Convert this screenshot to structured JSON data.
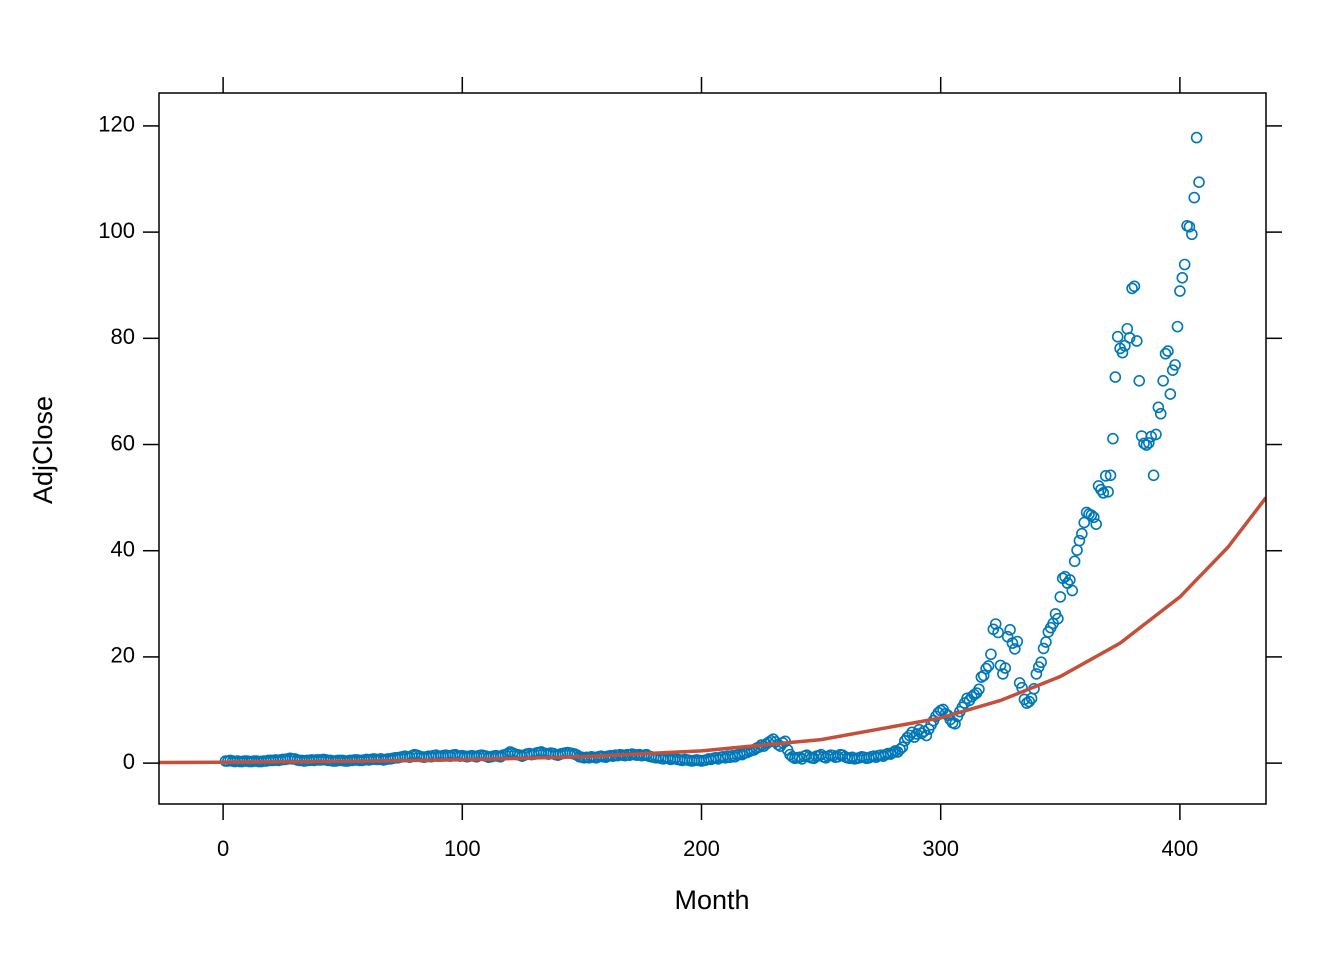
{
  "chart_data": {
    "type": "scatter",
    "x_label": "Month",
    "y_label": "AdjClose",
    "xlim": [
      -26.8,
      436
    ],
    "ylim": [
      -7.7,
      126.2
    ],
    "xticks": [
      0,
      100,
      200,
      300,
      400
    ],
    "yticks": [
      0,
      20,
      40,
      60,
      80,
      100,
      120
    ],
    "series": [
      {
        "type": "scatter",
        "color": "#0077b6",
        "x": [
          1,
          2,
          3,
          4,
          5,
          6,
          7,
          8,
          9,
          10,
          11,
          12,
          13,
          14,
          15,
          16,
          17,
          18,
          19,
          20,
          21,
          22,
          23,
          24,
          25,
          26,
          27,
          28,
          29,
          30,
          31,
          32,
          33,
          34,
          35,
          36,
          37,
          38,
          39,
          40,
          41,
          42,
          43,
          44,
          45,
          46,
          47,
          48,
          49,
          50,
          51,
          52,
          53,
          54,
          55,
          56,
          57,
          58,
          59,
          60,
          61,
          62,
          63,
          64,
          65,
          66,
          67,
          68,
          69,
          70,
          71,
          72,
          73,
          74,
          75,
          76,
          77,
          78,
          79,
          80,
          81,
          82,
          83,
          84,
          85,
          86,
          87,
          88,
          89,
          90,
          91,
          92,
          93,
          94,
          95,
          96,
          97,
          98,
          99,
          100,
          101,
          102,
          103,
          104,
          105,
          106,
          107,
          108,
          109,
          110,
          111,
          112,
          113,
          114,
          115,
          116,
          117,
          118,
          119,
          120,
          121,
          122,
          123,
          124,
          125,
          126,
          127,
          128,
          129,
          130,
          131,
          132,
          133,
          134,
          135,
          136,
          137,
          138,
          139,
          140,
          141,
          142,
          143,
          144,
          145,
          146,
          147,
          148,
          149,
          150,
          151,
          152,
          153,
          154,
          155,
          156,
          157,
          158,
          159,
          160,
          161,
          162,
          163,
          164,
          165,
          166,
          167,
          168,
          169,
          170,
          171,
          172,
          173,
          174,
          175,
          176,
          177,
          178,
          179,
          180,
          181,
          182,
          183,
          184,
          185,
          186,
          187,
          188,
          189,
          190,
          191,
          192,
          193,
          194,
          195,
          196,
          197,
          198,
          199,
          200,
          201,
          202,
          203,
          204,
          205,
          206,
          207,
          208,
          209,
          210,
          211,
          212,
          213,
          214,
          215,
          216,
          217,
          218,
          219,
          220,
          221,
          222,
          223,
          224,
          225,
          226,
          227,
          228,
          229,
          230,
          231,
          232,
          233,
          234,
          235,
          236,
          237,
          238,
          239,
          240,
          241,
          242,
          243,
          244,
          245,
          246,
          247,
          248,
          249,
          250,
          251,
          252,
          253,
          254,
          255,
          256,
          257,
          258,
          259,
          260,
          261,
          262,
          263,
          264,
          265,
          266,
          267,
          268,
          269,
          270,
          271,
          272,
          273,
          274,
          275,
          276,
          277,
          278,
          279,
          280,
          281,
          282,
          283,
          284,
          285,
          286,
          287,
          288,
          289,
          290,
          291,
          292,
          293,
          294,
          295,
          296,
          297,
          298,
          299,
          300,
          301,
          302,
          303,
          304,
          305,
          306,
          307,
          308,
          309,
          310,
          311,
          312,
          313,
          314,
          315,
          316,
          317,
          318,
          319,
          320,
          321,
          322,
          323,
          324,
          325,
          326,
          327,
          328,
          329,
          330,
          331,
          332,
          333,
          334,
          335,
          336,
          337,
          338,
          339,
          340,
          341,
          342,
          343,
          344,
          345,
          346,
          347,
          348,
          349,
          350,
          351,
          352,
          353,
          354,
          355,
          356,
          357,
          358,
          359,
          360,
          361,
          362,
          363,
          364,
          365,
          366,
          367,
          368,
          369,
          370,
          371,
          372,
          373,
          374,
          375,
          376,
          377,
          378,
          379,
          380,
          381,
          382,
          383,
          384,
          385,
          386,
          387,
          388,
          389,
          390,
          391,
          392,
          393,
          394,
          395,
          396,
          397,
          398,
          399,
          400,
          401,
          402,
          403,
          404,
          405,
          406,
          407,
          408
        ],
        "values": [
          0.4,
          0.4,
          0.5,
          0.4,
          0.3,
          0.4,
          0.3,
          0.3,
          0.4,
          0.4,
          0.3,
          0.3,
          0.4,
          0.4,
          0.3,
          0.3,
          0.4,
          0.4,
          0.5,
          0.5,
          0.5,
          0.6,
          0.5,
          0.6,
          0.7,
          0.7,
          0.8,
          0.9,
          0.8,
          0.8,
          0.6,
          0.5,
          0.5,
          0.4,
          0.5,
          0.5,
          0.6,
          0.5,
          0.6,
          0.6,
          0.6,
          0.7,
          0.6,
          0.5,
          0.5,
          0.4,
          0.4,
          0.5,
          0.5,
          0.5,
          0.4,
          0.4,
          0.5,
          0.5,
          0.6,
          0.6,
          0.5,
          0.5,
          0.6,
          0.7,
          0.6,
          0.7,
          0.8,
          0.7,
          0.7,
          0.8,
          0.6,
          0.7,
          0.8,
          0.8,
          0.9,
          1.0,
          1.0,
          1.1,
          1.2,
          1.3,
          1.2,
          1.1,
          1.4,
          1.6,
          1.5,
          1.3,
          1.2,
          1.1,
          1.2,
          1.3,
          1.2,
          1.4,
          1.5,
          1.3,
          1.3,
          1.4,
          1.5,
          1.4,
          1.3,
          1.5,
          1.6,
          1.4,
          1.3,
          1.4,
          1.3,
          1.2,
          1.3,
          1.4,
          1.3,
          1.2,
          1.4,
          1.5,
          1.4,
          1.3,
          1.1,
          1.2,
          1.3,
          1.4,
          1.3,
          1.2,
          1.5,
          1.6,
          1.8,
          2.1,
          1.9,
          1.7,
          1.6,
          1.5,
          1.3,
          1.5,
          1.7,
          1.8,
          1.6,
          1.7,
          1.9,
          2.0,
          2.1,
          1.9,
          1.8,
          1.7,
          1.9,
          1.8,
          1.6,
          1.5,
          1.7,
          1.8,
          1.9,
          2.0,
          1.9,
          1.8,
          1.7,
          1.5,
          1.2,
          1.1,
          1.0,
          1.1,
          1.0,
          1.2,
          1.1,
          1.0,
          1.2,
          1.3,
          1.2,
          1.1,
          1.3,
          1.4,
          1.3,
          1.5,
          1.4,
          1.6,
          1.5,
          1.4,
          1.6,
          1.5,
          1.7,
          1.6,
          1.5,
          1.6,
          1.4,
          1.5,
          1.6,
          1.3,
          1.2,
          1.1,
          1.0,
          1.1,
          0.9,
          0.8,
          1.0,
          0.9,
          0.7,
          0.8,
          0.9,
          0.7,
          0.6,
          0.5,
          0.7,
          0.6,
          0.5,
          0.4,
          0.5,
          0.6,
          0.5,
          0.4,
          0.5,
          0.6,
          0.8,
          0.7,
          0.9,
          1.0,
          0.8,
          1.1,
          1.2,
          1.0,
          1.3,
          1.1,
          1.4,
          1.2,
          1.5,
          1.7,
          1.6,
          1.9,
          2.0,
          2.2,
          2.4,
          2.5,
          2.8,
          3.0,
          3.4,
          3.2,
          3.6,
          3.9,
          4.2,
          4.5,
          4.0,
          3.5,
          3.2,
          3.8,
          4.1,
          2.5,
          1.6,
          1.2,
          0.9,
          1.0,
          1.1,
          0.8,
          1.3,
          1.5,
          1.2,
          1.0,
          0.9,
          1.3,
          1.4,
          1.6,
          1.2,
          1.0,
          1.3,
          1.5,
          1.4,
          1.1,
          1.2,
          1.6,
          1.5,
          1.2,
          1.0,
          0.9,
          1.1,
          0.8,
          0.9,
          1.0,
          1.2,
          1.1,
          0.9,
          1.0,
          1.2,
          1.3,
          1.1,
          1.4,
          1.5,
          1.3,
          1.6,
          1.8,
          1.7,
          2.0,
          2.3,
          2.1,
          2.6,
          3.0,
          4.2,
          4.8,
          5.2,
          5.8,
          4.9,
          5.5,
          6.3,
          5.6,
          6.0,
          5.2,
          6.4,
          7.2,
          8.0,
          8.8,
          9.5,
          9.9,
          10.1,
          9.3,
          9.0,
          8.2,
          7.6,
          7.4,
          8.8,
          9.7,
          10.5,
          11.3,
          12.2,
          11.8,
          12.5,
          12.9,
          13.2,
          13.9,
          16.2,
          16.5,
          17.8,
          18.3,
          20.5,
          25.2,
          26.2,
          24.6,
          18.4,
          16.8,
          17.9,
          23.8,
          25.1,
          22.6,
          21.5,
          22.9,
          15.1,
          14.2,
          12.0,
          11.3,
          11.6,
          12.2,
          14.0,
          16.8,
          18.1,
          19.0,
          21.6,
          22.8,
          24.7,
          25.5,
          26.3,
          28.1,
          27.2,
          31.3,
          34.8,
          35.1,
          33.9,
          34.5,
          32.5,
          38.0,
          40.1,
          41.9,
          43.2,
          45.3,
          47.2,
          46.9,
          46.7,
          46.3,
          45.0,
          52.2,
          51.5,
          50.9,
          54.1,
          51.1,
          54.2,
          61.1,
          72.7,
          80.3,
          78.1,
          77.3,
          78.6,
          81.8,
          80.1,
          89.4,
          89.8,
          79.5,
          72.0,
          61.6,
          60.2,
          59.9,
          60.3,
          61.5,
          54.2,
          61.9,
          67.0,
          65.8,
          72.0,
          77.1,
          77.6,
          69.5,
          74.0,
          75.0,
          82.2,
          88.9,
          91.4,
          93.9,
          101.2,
          101.0,
          99.6,
          106.5,
          117.8,
          109.4
        ]
      },
      {
        "type": "line",
        "color": "#c4503c",
        "x": [
          -26.8,
          0,
          50,
          100,
          150,
          200,
          250,
          300,
          325,
          350,
          375,
          400,
          420,
          436
        ],
        "values": [
          0.12,
          0.17,
          0.33,
          0.63,
          1.2,
          2.31,
          4.43,
          8.5,
          11.8,
          16.3,
          22.6,
          31.3,
          40.6,
          50.0
        ]
      }
    ]
  }
}
